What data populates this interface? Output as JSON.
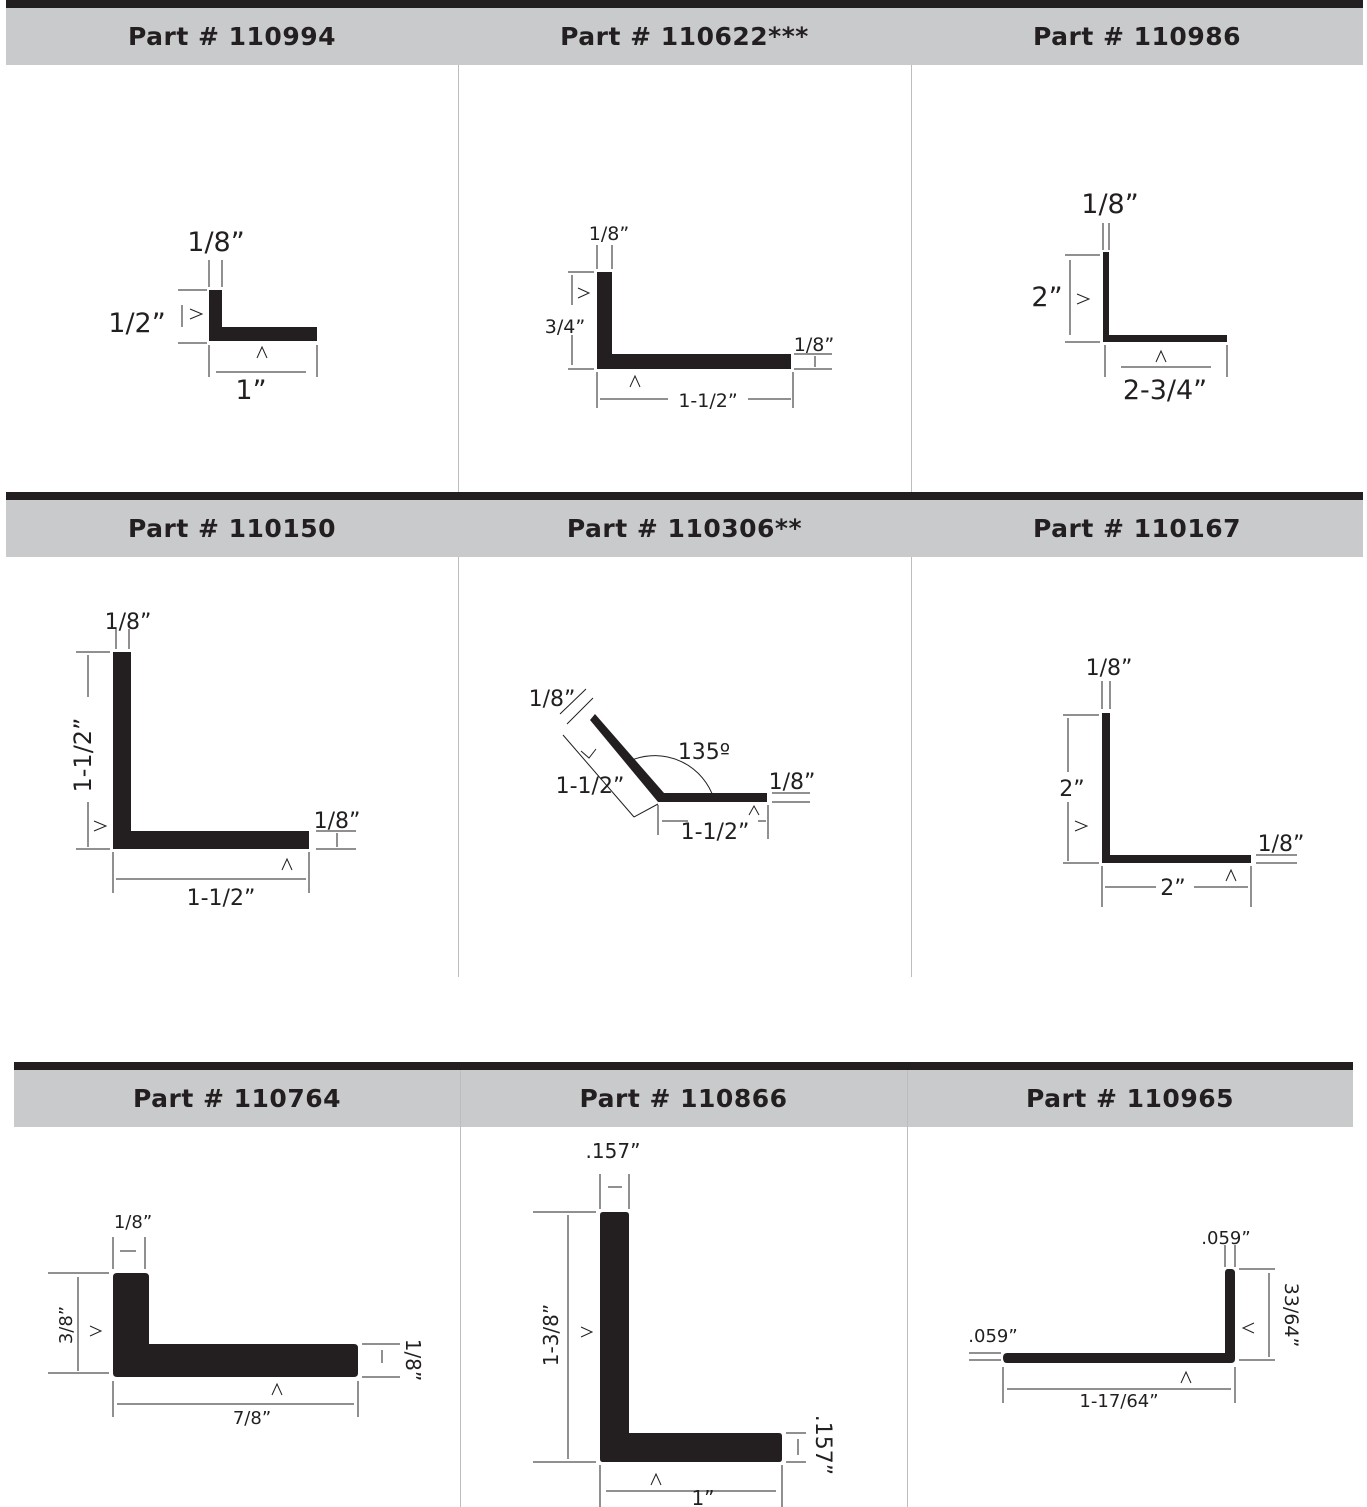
{
  "colors": {
    "bar": "#231f20",
    "header_bg": "#c9cacc",
    "divider": "#bdbdbd"
  },
  "rows": [
    {
      "panels": [
        {
          "title": "Part # 110994",
          "labels": {
            "thickness": "1/8”",
            "height": "1/2”",
            "width": "1”"
          }
        },
        {
          "title": "Part # 110622***",
          "labels": {
            "thickness": "1/8”",
            "height": "3/4”",
            "width": "1-1/2”",
            "leg_thickness": "1/8”"
          }
        },
        {
          "title": "Part # 110986",
          "labels": {
            "thickness": "1/8”",
            "height": "2”",
            "width": "2-3/4”"
          }
        }
      ]
    },
    {
      "panels": [
        {
          "title": "Part # 110150",
          "labels": {
            "thickness": "1/8”",
            "height": "1-1/2”",
            "width": "1-1/2”",
            "leg_thickness": "1/8”"
          }
        },
        {
          "title": "Part # 110306**",
          "labels": {
            "thickness": "1/8”",
            "angled_leg": "1-1/2”",
            "angle": "135º",
            "width": "1-1/2”",
            "leg_thickness": "1/8”"
          }
        },
        {
          "title": "Part # 110167",
          "labels": {
            "thickness": "1/8”",
            "height": "2”",
            "width": "2”",
            "leg_thickness": "1/8”"
          }
        }
      ]
    },
    {
      "panels": [
        {
          "title": "Part # 110764",
          "labels": {
            "thickness": "1/8”",
            "height": "3/8”",
            "width": "7/8”",
            "leg_thickness": "1/8”"
          }
        },
        {
          "title": "Part # 110866",
          "labels": {
            "thickness": ".157”",
            "height": "1-3/8”",
            "width": "1”",
            "leg_thickness": ".157”"
          }
        },
        {
          "title": "Part # 110965",
          "labels": {
            "thickness": ".059”",
            "height": "33/64”",
            "width": "1-17/64”",
            "leg_thickness": ".059”"
          }
        }
      ]
    }
  ]
}
